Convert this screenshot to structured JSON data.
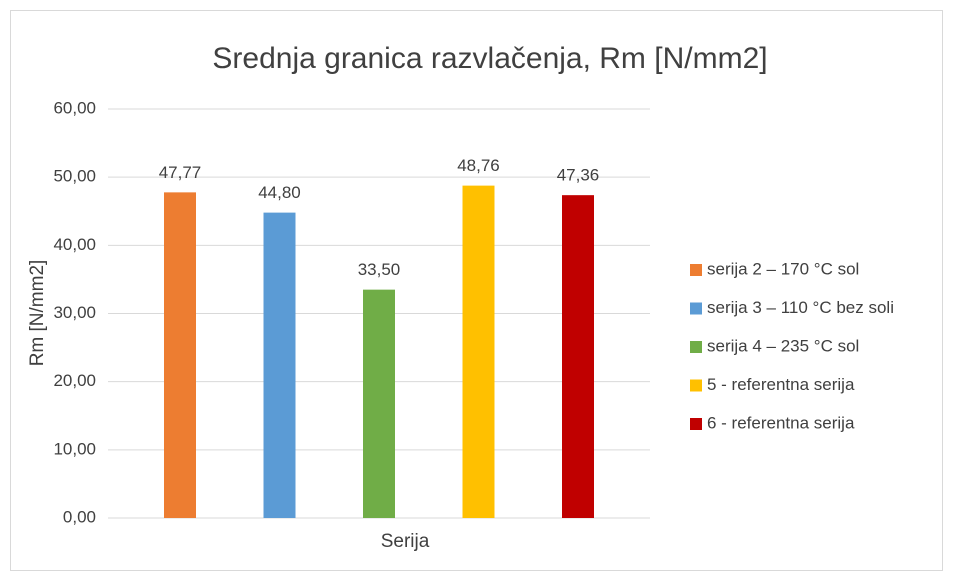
{
  "chart_data": {
    "type": "bar",
    "title": "Srednja granica razvlačenja, Rm [N/mm2]",
    "ylabel": "Rm [N/mm2]",
    "xlabel": "Serija",
    "ylim": [
      0,
      60
    ],
    "yticks": [
      {
        "value": 0,
        "label": "0,00"
      },
      {
        "value": 10,
        "label": "10,00"
      },
      {
        "value": 20,
        "label": "20,00"
      },
      {
        "value": 30,
        "label": "30,00"
      },
      {
        "value": 40,
        "label": "40,00"
      },
      {
        "value": 50,
        "label": "50,00"
      },
      {
        "value": 60,
        "label": "60,00"
      }
    ],
    "grid": true,
    "legend": "right",
    "series": [
      {
        "name": "serija 2 – 170 °C sol",
        "color": "#ed7d31",
        "values": [
          47.77
        ],
        "value_labels": [
          "47,77"
        ]
      },
      {
        "name": "serija 3 – 110 °C bez soli",
        "color": "#5b9bd5",
        "values": [
          44.8
        ],
        "value_labels": [
          "44,80"
        ]
      },
      {
        "name": "serija 4 – 235 °C sol",
        "color": "#70ad47",
        "values": [
          33.5
        ],
        "value_labels": [
          "33,50"
        ]
      },
      {
        "name": "5 - referentna serija",
        "color": "#ffc000",
        "values": [
          48.76
        ],
        "value_labels": [
          "48,76"
        ]
      },
      {
        "name": "6 - referentna serija",
        "color": "#c00000",
        "values": [
          47.36
        ],
        "value_labels": [
          "47,36"
        ]
      }
    ]
  }
}
